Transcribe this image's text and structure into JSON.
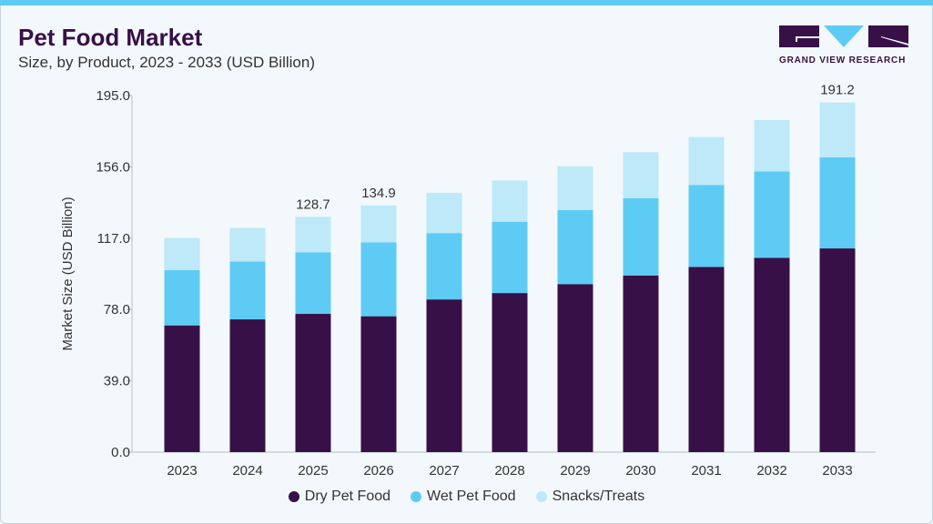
{
  "header": {
    "title": "Pet Food Market",
    "subtitle": "Size, by Product, 2023 - 2033 (USD Billion)"
  },
  "logo": {
    "text": "GRAND VIEW RESEARCH"
  },
  "colors": {
    "dry": "#371047",
    "wet": "#5ecbf5",
    "snacks": "#bde9f9",
    "accent": "#5ecbf5"
  },
  "chart_data": {
    "type": "bar",
    "stacked": true,
    "title": "Pet Food Market",
    "subtitle": "Size, by Product, 2023 - 2033 (USD Billion)",
    "xlabel": "",
    "ylabel": "Market Size (USD Billion)",
    "ylim": [
      0,
      195
    ],
    "yticks": [
      "0.0",
      "39.0",
      "78.0",
      "117.0",
      "156.0",
      "195.0"
    ],
    "categories": [
      "2023",
      "2024",
      "2025",
      "2026",
      "2027",
      "2028",
      "2029",
      "2030",
      "2031",
      "2032",
      "2033"
    ],
    "series": [
      {
        "name": "Dry Pet Food",
        "values": [
          69.3,
          72.6,
          75.6,
          74.3,
          83.5,
          87.0,
          91.9,
          96.6,
          101.3,
          106.2,
          111.4
        ]
      },
      {
        "name": "Wet Pet Food",
        "values": [
          30.2,
          31.6,
          33.7,
          40.4,
          36.3,
          39.0,
          40.5,
          42.2,
          44.8,
          47.3,
          49.8
        ]
      },
      {
        "name": "Snacks/Treats",
        "values": [
          17.6,
          18.4,
          19.4,
          20.2,
          22.0,
          22.5,
          23.9,
          25.2,
          26.2,
          28.1,
          30.0
        ]
      }
    ],
    "data_labels": {
      "2025": "128.7",
      "2026": "134.9",
      "2033": "191.2"
    },
    "grid": false,
    "legend": "bottom"
  }
}
